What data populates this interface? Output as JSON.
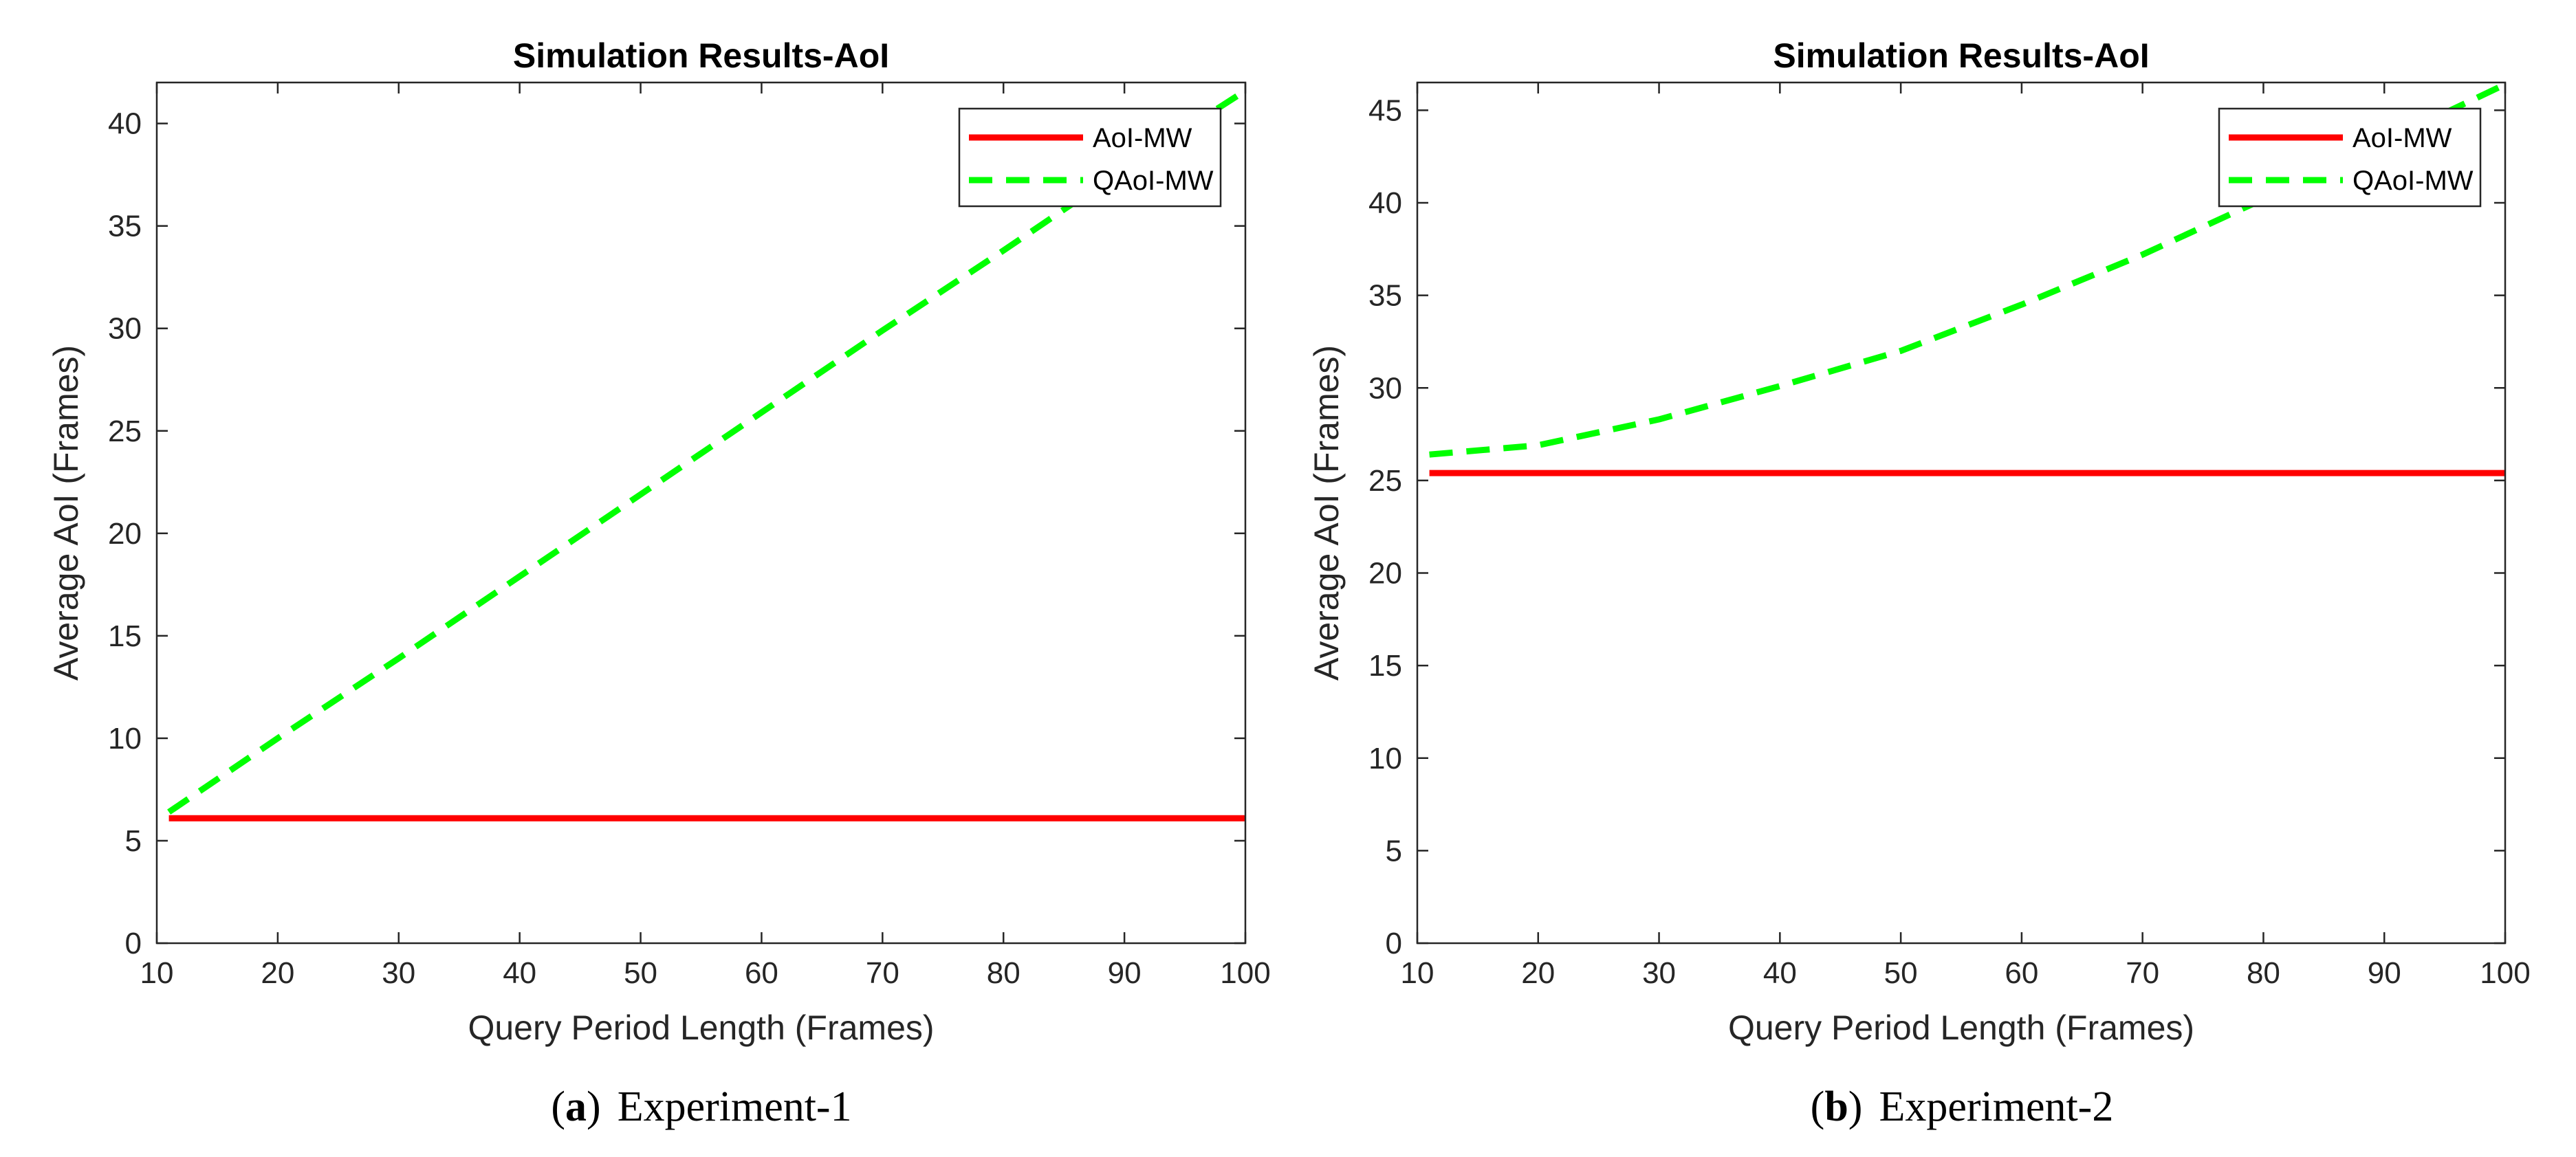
{
  "chart_data": [
    {
      "type": "line",
      "title": "Simulation Results-AoI",
      "xlabel": "Query Period Length (Frames)",
      "ylabel": "Average AoI (Frames)",
      "xlim": [
        10,
        100
      ],
      "ylim": [
        0,
        42
      ],
      "xticks": [
        10,
        20,
        30,
        40,
        50,
        60,
        70,
        80,
        90,
        100
      ],
      "yticks": [
        0,
        5,
        10,
        15,
        20,
        25,
        30,
        35,
        40
      ],
      "legend_position": "top-right",
      "caption_letter": "a",
      "caption_text": "Experiment-1",
      "series": [
        {
          "name": "AoI-MW",
          "style": "solid",
          "color": "#ff0000",
          "x": [
            11,
            100
          ],
          "y": [
            6.1,
            6.1
          ]
        },
        {
          "name": "QAoI-MW",
          "style": "dashed",
          "color": "#00ff00",
          "x": [
            11,
            20,
            30,
            40,
            50,
            60,
            70,
            80,
            90,
            100
          ],
          "y": [
            6.4,
            10.0,
            13.9,
            17.9,
            21.9,
            25.9,
            29.9,
            33.8,
            37.8,
            41.6
          ]
        }
      ]
    },
    {
      "type": "line",
      "title": "Simulation Results-AoI",
      "xlabel": "Query Period Length (Frames)",
      "ylabel": "Average AoI (Frames)",
      "xlim": [
        10,
        100
      ],
      "ylim": [
        0,
        46.5
      ],
      "xticks": [
        10,
        20,
        30,
        40,
        50,
        60,
        70,
        80,
        90,
        100
      ],
      "yticks": [
        0,
        5,
        10,
        15,
        20,
        25,
        30,
        35,
        40,
        45
      ],
      "legend_position": "top-right",
      "caption_letter": "b",
      "caption_text": "Experiment-2",
      "series": [
        {
          "name": "AoI-MW",
          "style": "solid",
          "color": "#ff0000",
          "x": [
            11,
            100
          ],
          "y": [
            25.4,
            25.4
          ]
        },
        {
          "name": "QAoI-MW",
          "style": "dashed",
          "color": "#00ff00",
          "x": [
            11,
            20,
            30,
            40,
            50,
            60,
            70,
            80,
            90,
            100
          ],
          "y": [
            26.4,
            26.9,
            28.3,
            30.1,
            32.0,
            34.5,
            37.2,
            40.2,
            43.3,
            46.4
          ]
        }
      ]
    }
  ]
}
